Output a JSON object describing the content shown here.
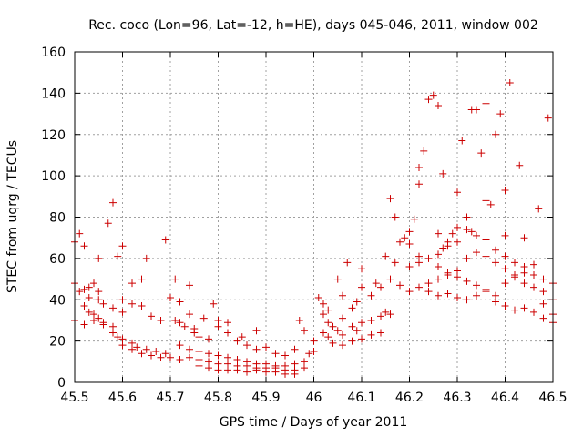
{
  "chart_data": {
    "type": "scatter",
    "title": "Rec. coco (Lon=96, Lat=-12, h=HE), days 045-046, 2011, window 002",
    "xlabel": "GPS time / Days of year 2011",
    "ylabel": "STEC from uqrg / TECUs",
    "xlim": [
      45.5,
      46.5
    ],
    "ylim": [
      0,
      160
    ],
    "grid": true,
    "marker": "+",
    "color": "#cc0000",
    "x_ticks": [
      "45.5",
      "45.6",
      "45.7",
      "45.8",
      "45.9",
      "46",
      "46.1",
      "46.2",
      "46.3",
      "46.4",
      "46.5"
    ],
    "y_ticks": [
      "0",
      "20",
      "40",
      "60",
      "80",
      "100",
      "120",
      "140",
      "160"
    ],
    "series": [
      {
        "name": "STEC",
        "points": [
          [
            45.5,
            68
          ],
          [
            45.51,
            72
          ],
          [
            45.52,
            66
          ],
          [
            45.55,
            60
          ],
          [
            45.5,
            48
          ],
          [
            45.51,
            44
          ],
          [
            45.52,
            45
          ],
          [
            45.53,
            46
          ],
          [
            45.54,
            48
          ],
          [
            45.55,
            44
          ],
          [
            45.52,
            37
          ],
          [
            45.53,
            34
          ],
          [
            45.54,
            33
          ],
          [
            45.55,
            31
          ],
          [
            45.56,
            29
          ],
          [
            45.5,
            30
          ],
          [
            45.52,
            28
          ],
          [
            45.54,
            30
          ],
          [
            45.56,
            28
          ],
          [
            45.58,
            27
          ],
          [
            45.53,
            41
          ],
          [
            45.55,
            40
          ],
          [
            45.56,
            38
          ],
          [
            45.58,
            36
          ],
          [
            45.6,
            34
          ],
          [
            45.57,
            77
          ],
          [
            45.58,
            87
          ],
          [
            45.59,
            61
          ],
          [
            45.6,
            66
          ],
          [
            45.6,
            40
          ],
          [
            45.62,
            38
          ],
          [
            45.62,
            48
          ],
          [
            45.64,
            50
          ],
          [
            45.64,
            37
          ],
          [
            45.58,
            24
          ],
          [
            45.59,
            22
          ],
          [
            45.6,
            21
          ],
          [
            45.62,
            19
          ],
          [
            45.63,
            17
          ],
          [
            45.65,
            16
          ],
          [
            45.67,
            15
          ],
          [
            45.69,
            14
          ],
          [
            45.6,
            18
          ],
          [
            45.62,
            16
          ],
          [
            45.64,
            14
          ],
          [
            45.66,
            13
          ],
          [
            45.68,
            12
          ],
          [
            45.7,
            12
          ],
          [
            45.72,
            11
          ],
          [
            45.65,
            60
          ],
          [
            45.66,
            32
          ],
          [
            45.68,
            30
          ],
          [
            45.69,
            69
          ],
          [
            45.7,
            41
          ],
          [
            45.71,
            50
          ],
          [
            45.72,
            39
          ],
          [
            45.74,
            47
          ],
          [
            45.71,
            30
          ],
          [
            45.72,
            29
          ],
          [
            45.73,
            27
          ],
          [
            45.75,
            26
          ],
          [
            45.74,
            33
          ],
          [
            45.77,
            31
          ],
          [
            45.8,
            30
          ],
          [
            45.75,
            24
          ],
          [
            45.76,
            22
          ],
          [
            45.78,
            21
          ],
          [
            45.79,
            38
          ],
          [
            45.8,
            27
          ],
          [
            45.82,
            29
          ],
          [
            45.72,
            18
          ],
          [
            45.74,
            16
          ],
          [
            45.76,
            15
          ],
          [
            45.78,
            14
          ],
          [
            45.8,
            13
          ],
          [
            45.82,
            12
          ],
          [
            45.84,
            11
          ],
          [
            45.86,
            10
          ],
          [
            45.88,
            9
          ],
          [
            45.9,
            9
          ],
          [
            45.92,
            8
          ],
          [
            45.94,
            8
          ],
          [
            45.96,
            9
          ],
          [
            45.98,
            10
          ],
          [
            45.74,
            12
          ],
          [
            45.76,
            11
          ],
          [
            45.78,
            10
          ],
          [
            45.8,
            9
          ],
          [
            45.82,
            9
          ],
          [
            45.84,
            8
          ],
          [
            45.86,
            8
          ],
          [
            45.88,
            7
          ],
          [
            45.9,
            7
          ],
          [
            45.92,
            7
          ],
          [
            45.94,
            6
          ],
          [
            45.96,
            6
          ],
          [
            45.98,
            7
          ],
          [
            45.76,
            8
          ],
          [
            45.78,
            7
          ],
          [
            45.8,
            6
          ],
          [
            45.82,
            6
          ],
          [
            45.84,
            6
          ],
          [
            45.86,
            5
          ],
          [
            45.88,
            6
          ],
          [
            45.9,
            5
          ],
          [
            45.92,
            5
          ],
          [
            45.94,
            4
          ],
          [
            45.96,
            4
          ],
          [
            45.82,
            24
          ],
          [
            45.84,
            20
          ],
          [
            45.85,
            22
          ],
          [
            45.86,
            18
          ],
          [
            45.88,
            25
          ],
          [
            45.88,
            16
          ],
          [
            45.9,
            17
          ],
          [
            45.92,
            14
          ],
          [
            45.94,
            13
          ],
          [
            45.96,
            16
          ],
          [
            45.97,
            30
          ],
          [
            45.98,
            25
          ],
          [
            45.99,
            14
          ],
          [
            46.0,
            20
          ],
          [
            46.0,
            15
          ],
          [
            46.01,
            41
          ],
          [
            46.02,
            38
          ],
          [
            46.02,
            33
          ],
          [
            46.03,
            35
          ],
          [
            46.03,
            29
          ],
          [
            46.04,
            27
          ],
          [
            46.05,
            50
          ],
          [
            46.06,
            42
          ],
          [
            46.06,
            31
          ],
          [
            46.07,
            58
          ],
          [
            46.08,
            36
          ],
          [
            46.09,
            39
          ],
          [
            46.1,
            55
          ],
          [
            46.1,
            46
          ],
          [
            46.02,
            24
          ],
          [
            46.03,
            22
          ],
          [
            46.05,
            25
          ],
          [
            46.06,
            23
          ],
          [
            46.08,
            27
          ],
          [
            46.09,
            25
          ],
          [
            46.1,
            29
          ],
          [
            46.12,
            30
          ],
          [
            46.14,
            32
          ],
          [
            46.15,
            34
          ],
          [
            46.16,
            33
          ],
          [
            46.04,
            19
          ],
          [
            46.06,
            18
          ],
          [
            46.08,
            20
          ],
          [
            46.1,
            21
          ],
          [
            46.12,
            23
          ],
          [
            46.14,
            24
          ],
          [
            46.12,
            42
          ],
          [
            46.13,
            48
          ],
          [
            46.14,
            46
          ],
          [
            46.15,
            61
          ],
          [
            46.16,
            89
          ],
          [
            46.16,
            50
          ],
          [
            46.17,
            80
          ],
          [
            46.17,
            58
          ],
          [
            46.18,
            47
          ],
          [
            46.18,
            68
          ],
          [
            46.19,
            70
          ],
          [
            46.2,
            73
          ],
          [
            46.2,
            67
          ],
          [
            46.21,
            79
          ],
          [
            46.22,
            61
          ],
          [
            46.22,
            96
          ],
          [
            46.22,
            104
          ],
          [
            46.23,
            112
          ],
          [
            46.24,
            137
          ],
          [
            46.25,
            139
          ],
          [
            46.26,
            134
          ],
          [
            46.27,
            101
          ],
          [
            46.26,
            72
          ],
          [
            46.27,
            65
          ],
          [
            46.28,
            68
          ],
          [
            46.29,
            72
          ],
          [
            46.3,
            75
          ],
          [
            46.3,
            92
          ],
          [
            46.31,
            117
          ],
          [
            46.32,
            80
          ],
          [
            46.33,
            73
          ],
          [
            46.33,
            132
          ],
          [
            46.34,
            132
          ],
          [
            46.35,
            111
          ],
          [
            46.36,
            135
          ],
          [
            46.36,
            88
          ],
          [
            46.37,
            86
          ],
          [
            46.38,
            120
          ],
          [
            46.39,
            130
          ],
          [
            46.4,
            93
          ],
          [
            46.4,
            71
          ],
          [
            46.41,
            145
          ],
          [
            46.43,
            105
          ],
          [
            46.44,
            70
          ],
          [
            46.47,
            84
          ],
          [
            46.49,
            128
          ],
          [
            46.2,
            44
          ],
          [
            46.22,
            46
          ],
          [
            46.24,
            48
          ],
          [
            46.26,
            50
          ],
          [
            46.28,
            52
          ],
          [
            46.3,
            54
          ],
          [
            46.32,
            60
          ],
          [
            46.34,
            63
          ],
          [
            46.36,
            61
          ],
          [
            46.38,
            58
          ],
          [
            46.4,
            55
          ],
          [
            46.42,
            52
          ],
          [
            46.44,
            48
          ],
          [
            46.46,
            46
          ],
          [
            46.48,
            44
          ],
          [
            46.5,
            40
          ],
          [
            46.2,
            56
          ],
          [
            46.22,
            58
          ],
          [
            46.24,
            60
          ],
          [
            46.26,
            62
          ],
          [
            46.28,
            66
          ],
          [
            46.3,
            68
          ],
          [
            46.32,
            74
          ],
          [
            46.34,
            71
          ],
          [
            46.36,
            69
          ],
          [
            46.38,
            64
          ],
          [
            46.4,
            61
          ],
          [
            46.42,
            58
          ],
          [
            46.44,
            56
          ],
          [
            46.46,
            52
          ],
          [
            46.48,
            50
          ],
          [
            46.5,
            48
          ],
          [
            46.24,
            44
          ],
          [
            46.26,
            42
          ],
          [
            46.28,
            43
          ],
          [
            46.3,
            41
          ],
          [
            46.32,
            40
          ],
          [
            46.34,
            42
          ],
          [
            46.36,
            45
          ],
          [
            46.38,
            39
          ],
          [
            46.4,
            37
          ],
          [
            46.42,
            35
          ],
          [
            46.44,
            36
          ],
          [
            46.46,
            34
          ],
          [
            46.48,
            31
          ],
          [
            46.5,
            29
          ],
          [
            46.26,
            56
          ],
          [
            46.28,
            53
          ],
          [
            46.3,
            51
          ],
          [
            46.32,
            49
          ],
          [
            46.34,
            47
          ],
          [
            46.36,
            44
          ],
          [
            46.38,
            42
          ],
          [
            46.4,
            48
          ],
          [
            46.42,
            51
          ],
          [
            46.44,
            53
          ],
          [
            46.46,
            57
          ],
          [
            46.48,
            38
          ],
          [
            46.5,
            33
          ]
        ]
      }
    ]
  }
}
